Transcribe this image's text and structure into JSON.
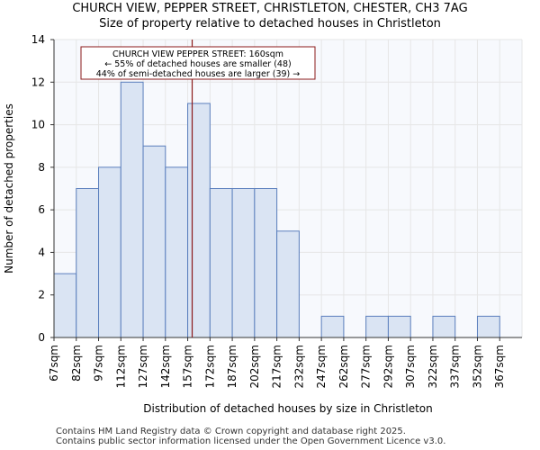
{
  "header": {
    "title_line1": "CHURCH VIEW, PEPPER STREET, CHRISTLETON, CHESTER, CH3 7AG",
    "title_line2": "Size of property relative to detached houses in Christleton"
  },
  "footer": {
    "line1": "Contains HM Land Registry data © Crown copyright and database right 2025.",
    "line2": "Contains public sector information licensed under the Open Government Licence v3.0."
  },
  "colors": {
    "bar_fill": "#dae4f3",
    "bar_stroke": "#5b7fbd",
    "marker": "#8b1a1a",
    "grid": "#e6e6e6"
  },
  "chart_data": {
    "type": "bar",
    "title": "Size of property relative to detached houses in Christleton",
    "xlabel": "Distribution of detached houses by size in Christleton",
    "ylabel": "Number of detached properties",
    "ylim": [
      0,
      14
    ],
    "yticks": [
      0,
      2,
      4,
      6,
      8,
      10,
      12,
      14
    ],
    "grid": true,
    "categories": [
      "67sqm",
      "82sqm",
      "97sqm",
      "112sqm",
      "127sqm",
      "142sqm",
      "157sqm",
      "172sqm",
      "187sqm",
      "202sqm",
      "217sqm",
      "232sqm",
      "247sqm",
      "262sqm",
      "277sqm",
      "292sqm",
      "307sqm",
      "322sqm",
      "337sqm",
      "352sqm",
      "367sqm"
    ],
    "bin_edges": [
      67,
      82,
      97,
      112,
      127,
      142,
      157,
      172,
      187,
      202,
      217,
      232,
      247,
      262,
      277,
      292,
      307,
      322,
      337,
      352,
      367,
      382
    ],
    "values": [
      3,
      7,
      8,
      12,
      9,
      8,
      11,
      7,
      7,
      7,
      5,
      0,
      1,
      0,
      1,
      1,
      0,
      1,
      0,
      1,
      0
    ],
    "marker_value": 160,
    "annotation": {
      "line1": "CHURCH VIEW PEPPER STREET: 160sqm",
      "line2": "← 55% of detached houses are smaller (48)",
      "line3": "44% of semi-detached houses are larger (39) →"
    }
  }
}
